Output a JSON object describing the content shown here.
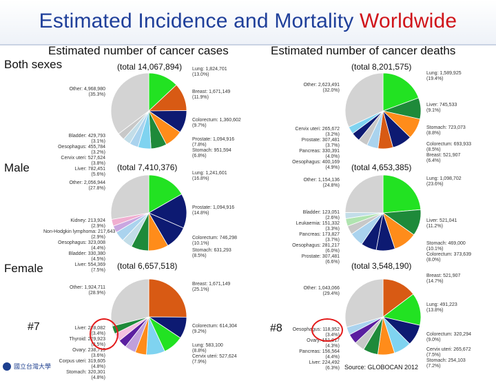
{
  "title": {
    "main": "Estimated Incidence and Mortality ",
    "highlight": "Worldwide"
  },
  "headers": {
    "cases": "Estimated number of cancer cases",
    "deaths": "Estimated number of cancer deaths"
  },
  "rows": {
    "both": "Both sexes",
    "male": "Male",
    "female": "Female"
  },
  "notes": {
    "a": "#7",
    "b": "#8"
  },
  "source": "Source: GLOBOCAN 2012",
  "logo_text": "國立台灣大學",
  "colors": {
    "lung": "#22e222",
    "breast": "#d85a14",
    "colorectum": "#0d1a72",
    "prostate": "#0d1a72",
    "stomach": "#ff8c1a",
    "liver": "#1e8a3a",
    "cervix": "#7fd3f0",
    "oesophagus": "#aad3ee",
    "bladder": "#c2dde8",
    "pancreas": "#c8c8c8",
    "leukaemia": "#b0e4b0",
    "kidney": "#f0aed0",
    "nhl": "#c9a6e0",
    "ovary": "#5a1ea0",
    "corpus": "#c0a0dc",
    "thyroid": "#f4c0e0",
    "other": "#d3d3d3"
  },
  "chart_data": [
    {
      "type": "pie",
      "title": "Both sexes — cases",
      "total": "(total 14,067,894)",
      "slices": [
        {
          "name": "Lung",
          "value": 1824701,
          "label": "Lung: 1,824,701",
          "pct": "(13.0%)",
          "key": "lung"
        },
        {
          "name": "Breast",
          "value": 1671149,
          "label": "Breast: 1,671,149",
          "pct": "(11.9%)",
          "key": "breast"
        },
        {
          "name": "Colorectum",
          "value": 1360602,
          "label": "Colorectum: 1,360,602",
          "pct": "(9.7%)",
          "key": "colorectum"
        },
        {
          "name": "Prostate",
          "value": 1094916,
          "label": "Prostate: 1,094,916",
          "pct": "(7.8%)",
          "key": "stomach"
        },
        {
          "name": "Stomach",
          "value": 951594,
          "label": "Stomach: 951,594",
          "pct": "(6.8%)",
          "key": "liver"
        },
        {
          "name": "Liver",
          "value": 782451,
          "label": "Liver: 782,451",
          "pct": "(5.6%)",
          "key": "cervix"
        },
        {
          "name": "Cervix uteri",
          "value": 527624,
          "label": "Cervix uteri: 527,624",
          "pct": "(3.8%)",
          "key": "oesophagus"
        },
        {
          "name": "Oesophagus",
          "value": 455784,
          "label": "Oesophagus: 455,784",
          "pct": "(3.2%)",
          "key": "bladder"
        },
        {
          "name": "Bladder",
          "value": 429793,
          "label": "Bladder: 429,793",
          "pct": "(3.1%)",
          "key": "pancreas"
        },
        {
          "name": "Other",
          "value": 4968980,
          "label": "Other: 4,968,980",
          "pct": "(35.3%)",
          "key": "other"
        }
      ]
    },
    {
      "type": "pie",
      "title": "Both sexes — deaths",
      "total": "(total 8,201,575)",
      "slices": [
        {
          "name": "Lung",
          "value": 1589925,
          "label": "Lung: 1,589,925",
          "pct": "(19.4%)",
          "key": "lung"
        },
        {
          "name": "Liver",
          "value": 745533,
          "label": "Liver: 745,533",
          "pct": "(9.1%)",
          "key": "liver"
        },
        {
          "name": "Stomach",
          "value": 723073,
          "label": "Stomach: 723,073",
          "pct": "(8.8%)",
          "key": "stomach"
        },
        {
          "name": "Colorectum",
          "value": 693933,
          "label": "Colorectum: 693,933",
          "pct": "(8.5%)",
          "key": "colorectum"
        },
        {
          "name": "Breast",
          "value": 521907,
          "label": "Breast: 521,907",
          "pct": "(6.4%)",
          "key": "breast"
        },
        {
          "name": "Oesophagus",
          "value": 400169,
          "label": "Oesophagus: 400,169",
          "pct": "(4.9%)",
          "key": "oesophagus"
        },
        {
          "name": "Pancreas",
          "value": 330391,
          "label": "Pancreas: 330,391",
          "pct": "(4.0%)",
          "key": "pancreas"
        },
        {
          "name": "Prostate",
          "value": 307481,
          "label": "Prostate: 307,481",
          "pct": "(3.7%)",
          "key": "prostate"
        },
        {
          "name": "Cervix uteri",
          "value": 265672,
          "label": "Cervix uteri: 265,672",
          "pct": "(3.2%)",
          "key": "cervix"
        },
        {
          "name": "Other",
          "value": 2623491,
          "label": "Other: 2,623,491",
          "pct": "(32.0%)",
          "key": "other"
        }
      ]
    },
    {
      "type": "pie",
      "title": "Male — cases",
      "total": "(total 7,410,376)",
      "slices": [
        {
          "name": "Lung",
          "value": 1241601,
          "label": "Lung: 1,241,601",
          "pct": "(16.8%)",
          "key": "lung"
        },
        {
          "name": "Prostate",
          "value": 1094916,
          "label": "Prostate: 1,094,916",
          "pct": "(14.8%)",
          "key": "prostate"
        },
        {
          "name": "Colorectum",
          "value": 746298,
          "label": "Colorectum: 746,298",
          "pct": "(10.1%)",
          "key": "colorectum"
        },
        {
          "name": "Stomach",
          "value": 631293,
          "label": "Stomach: 631,293",
          "pct": "(8.5%)",
          "key": "stomach"
        },
        {
          "name": "Liver",
          "value": 554369,
          "label": "Liver: 554,369",
          "pct": "(7.5%)",
          "key": "liver"
        },
        {
          "name": "Bladder",
          "value": 330380,
          "label": "Bladder: 330,380",
          "pct": "(4.5%)",
          "key": "bladder"
        },
        {
          "name": "Oesophagus",
          "value": 323008,
          "label": "Oesophagus: 323,008",
          "pct": "(4.4%)",
          "key": "oesophagus"
        },
        {
          "name": "Non-Hodgkin lymphoma",
          "value": 217643,
          "label": "Non-Hodgkin lymphoma: 217,643",
          "pct": "(2.9%)",
          "key": "nhl"
        },
        {
          "name": "Kidney",
          "value": 213924,
          "label": "Kidney: 213,924",
          "pct": "(2.9%)",
          "key": "kidney"
        },
        {
          "name": "Other",
          "value": 2056944,
          "label": "Other: 2,056,944",
          "pct": "(27.8%)",
          "key": "other"
        }
      ]
    },
    {
      "type": "pie",
      "title": "Male — deaths",
      "total": "(total 4,653,385)",
      "slices": [
        {
          "name": "Lung",
          "value": 1098702,
          "label": "Lung: 1,098,702",
          "pct": "(23.6%)",
          "key": "lung"
        },
        {
          "name": "Liver",
          "value": 521041,
          "label": "Liver: 521,041",
          "pct": "(11.2%)",
          "key": "liver"
        },
        {
          "name": "Stomach",
          "value": 469000,
          "label": "Stomach: 469,000",
          "pct": "(10.1%)",
          "key": "stomach"
        },
        {
          "name": "Colorectum",
          "value": 373639,
          "label": "Colorectum: 373,639",
          "pct": "(8.0%)",
          "key": "colorectum"
        },
        {
          "name": "Prostate",
          "value": 307481,
          "label": "Prostate: 307,481",
          "pct": "(6.6%)",
          "key": "prostate"
        },
        {
          "name": "Oesophagus",
          "value": 281217,
          "label": "Oesophagus: 281,217",
          "pct": "(6.0%)",
          "key": "oesophagus"
        },
        {
          "name": "Pancreas",
          "value": 173827,
          "label": "Pancreas: 173,827",
          "pct": "(3.7%)",
          "key": "pancreas"
        },
        {
          "name": "Leukaemia",
          "value": 151332,
          "label": "Leukaemia: 151,332",
          "pct": "(3.3%)",
          "key": "leukaemia"
        },
        {
          "name": "Bladder",
          "value": 123051,
          "label": "Bladder: 123,051",
          "pct": "(2.6%)",
          "key": "bladder"
        },
        {
          "name": "Other",
          "value": 1154136,
          "label": "Other: 1,154,136",
          "pct": "(24.8%)",
          "key": "other"
        }
      ]
    },
    {
      "type": "pie",
      "title": "Female — cases",
      "total": "(total 6,657,518)",
      "slices": [
        {
          "name": "Breast",
          "value": 1671149,
          "label": "Breast: 1,671,149",
          "pct": "(25.1%)",
          "key": "breast"
        },
        {
          "name": "Colorectum",
          "value": 614304,
          "label": "Colorectum: 614,304",
          "pct": "(9.2%)",
          "key": "colorectum"
        },
        {
          "name": "Lung",
          "value": 583100,
          "label": "Lung: 583,100",
          "pct": "(8.8%)",
          "key": "lung"
        },
        {
          "name": "Cervix uteri",
          "value": 527624,
          "label": "Cervix uteri: 527,624",
          "pct": "(7.9%)",
          "key": "cervix"
        },
        {
          "name": "Stomach",
          "value": 320301,
          "label": "Stomach: 320,301",
          "pct": "(4.8%)",
          "key": "stomach"
        },
        {
          "name": "Corpus uteri",
          "value": 319605,
          "label": "Corpus uteri: 319,605",
          "pct": "(4.8%)",
          "key": "corpus"
        },
        {
          "name": "Ovary",
          "value": 238719,
          "label": "Ovary: 238,719",
          "pct": "(3.6%)",
          "key": "ovary"
        },
        {
          "name": "Thyroid",
          "value": 229923,
          "label": "Thyroid: 229,923",
          "pct": "(3.5%)",
          "key": "thyroid"
        },
        {
          "name": "Liver",
          "value": 228082,
          "label": "Liver: 228,082",
          "pct": "(3.4%)",
          "key": "liver"
        },
        {
          "name": "Other",
          "value": 1924711,
          "label": "Other: 1,924,711",
          "pct": "(28.9%)",
          "key": "other"
        }
      ]
    },
    {
      "type": "pie",
      "title": "Female — deaths",
      "total": "(total 3,548,190)",
      "slices": [
        {
          "name": "Breast",
          "value": 521907,
          "label": "Breast: 521,907",
          "pct": "(14.7%)",
          "key": "breast"
        },
        {
          "name": "Lung",
          "value": 491223,
          "label": "Lung: 491,223",
          "pct": "(13.8%)",
          "key": "lung"
        },
        {
          "name": "Colorectum",
          "value": 320294,
          "label": "Colorectum: 320,294",
          "pct": "(9.0%)",
          "key": "colorectum"
        },
        {
          "name": "Cervix uteri",
          "value": 265672,
          "label": "Cervix uteri: 265,672",
          "pct": "(7.5%)",
          "key": "cervix"
        },
        {
          "name": "Stomach",
          "value": 254103,
          "label": "Stomach: 254,103",
          "pct": "(7.2%)",
          "key": "stomach"
        },
        {
          "name": "Liver",
          "value": 224492,
          "label": "Liver: 224,492",
          "pct": "(6.3%)",
          "key": "liver"
        },
        {
          "name": "Pancreas",
          "value": 156564,
          "label": "Pancreas: 156,564",
          "pct": "(4.4%)",
          "key": "pancreas"
        },
        {
          "name": "Ovary",
          "value": 151917,
          "label": "Ovary: 151,917",
          "pct": "(4.3%)",
          "key": "ovary"
        },
        {
          "name": "Oesophagus",
          "value": 118952,
          "label": "Oesophagus: 118,952",
          "pct": "(3.4%)",
          "key": "oesophagus"
        },
        {
          "name": "Other",
          "value": 1043066,
          "label": "Other: 1,043,066",
          "pct": "(29.4%)",
          "key": "other"
        }
      ]
    }
  ]
}
